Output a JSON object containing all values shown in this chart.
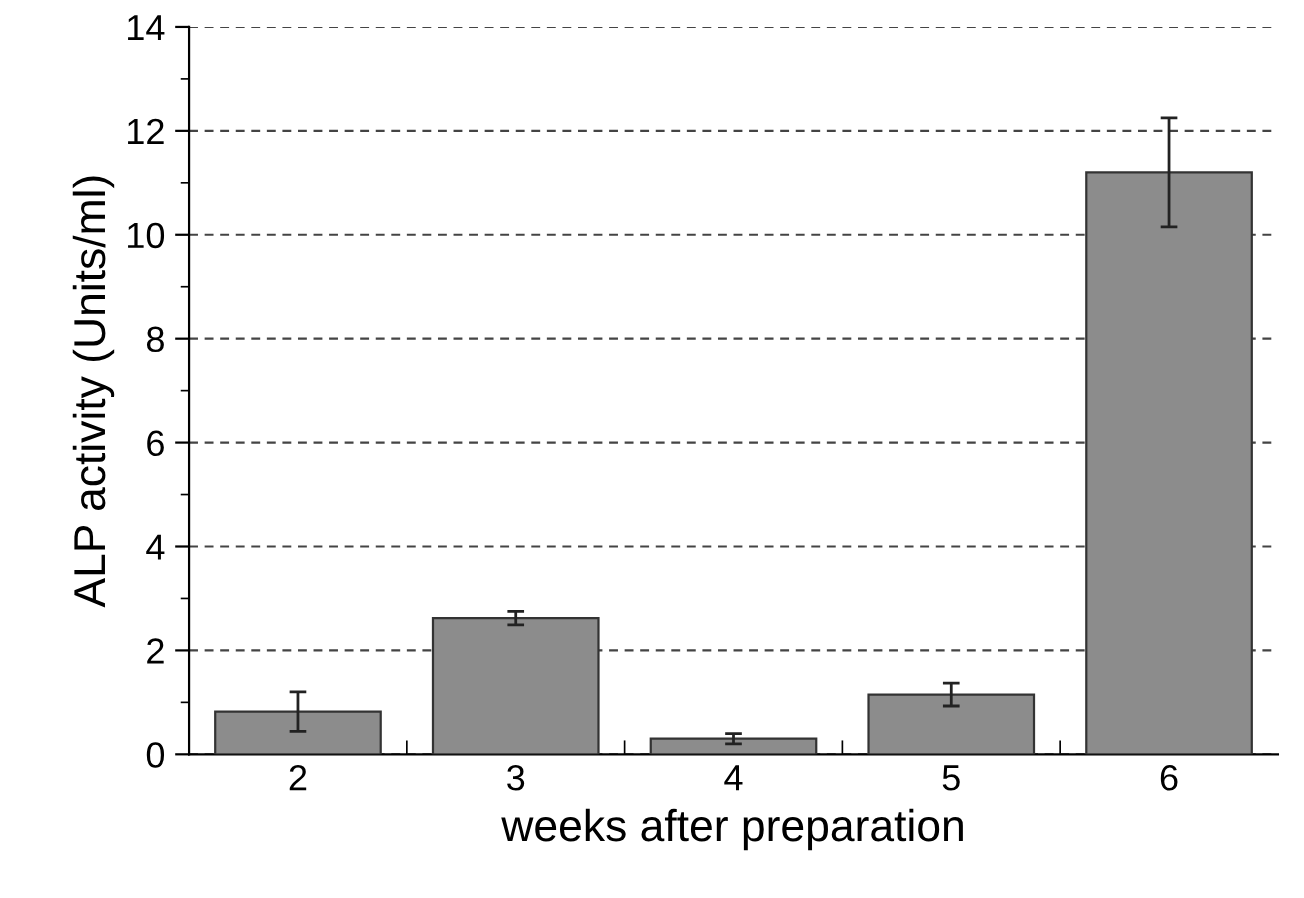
{
  "chart_data": {
    "type": "bar",
    "xlabel": "weeks after preparation",
    "ylabel": "ALP activity (Units/ml)",
    "categories": [
      "2",
      "3",
      "4",
      "5",
      "6"
    ],
    "values": [
      0.82,
      2.62,
      0.3,
      1.15,
      11.2
    ],
    "errors": [
      0.38,
      0.13,
      0.1,
      0.22,
      1.05
    ],
    "color": "#8c8c8c",
    "ylim": [
      0,
      14
    ],
    "yticks": [
      0,
      2,
      4,
      6,
      8,
      10,
      12,
      14
    ],
    "grid": "y"
  }
}
